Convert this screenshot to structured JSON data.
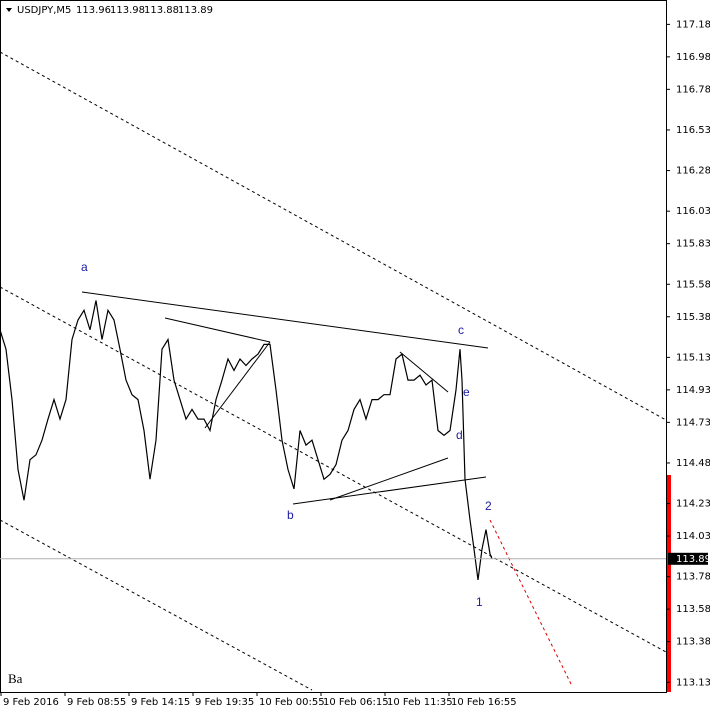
{
  "chart_data": {
    "type": "line",
    "title": "USDJPY,M5",
    "ohlc": [
      113.96,
      113.98,
      113.88,
      113.89
    ],
    "color": "#000000",
    "x": [
      0,
      6,
      12,
      18,
      24,
      30,
      36,
      42,
      48,
      54,
      60,
      66,
      72,
      78,
      84,
      90,
      96,
      102,
      108,
      114,
      120,
      126,
      132,
      138,
      144,
      150,
      156,
      162,
      168,
      174,
      180,
      186,
      192,
      198,
      204,
      210,
      216,
      222,
      228,
      234,
      240,
      246,
      252,
      258,
      264,
      270,
      276,
      282,
      288,
      294,
      300,
      306,
      312,
      318,
      324,
      330,
      336,
      342,
      348,
      354,
      360,
      366,
      372,
      378,
      384,
      390,
      396,
      402,
      408,
      414,
      420,
      426,
      432,
      438,
      444,
      450,
      456,
      460,
      462,
      465,
      470,
      474,
      478,
      482,
      486,
      490,
      492
    ],
    "values": [
      115.3,
      115.18,
      114.87,
      114.44,
      114.25,
      114.5,
      114.53,
      114.62,
      114.75,
      114.87,
      114.75,
      114.87,
      115.24,
      115.36,
      115.42,
      115.3,
      115.48,
      115.24,
      115.42,
      115.36,
      115.18,
      114.99,
      114.9,
      114.87,
      114.68,
      114.38,
      114.62,
      115.18,
      115.24,
      114.99,
      114.87,
      114.75,
      114.81,
      114.75,
      114.75,
      114.68,
      114.87,
      114.99,
      115.12,
      115.05,
      115.12,
      115.08,
      115.12,
      115.15,
      115.21,
      115.21,
      114.93,
      114.62,
      114.44,
      114.32,
      114.68,
      114.59,
      114.62,
      114.5,
      114.38,
      114.41,
      114.47,
      114.62,
      114.68,
      114.81,
      114.87,
      114.75,
      114.87,
      114.87,
      114.9,
      114.9,
      115.12,
      115.15,
      114.99,
      114.99,
      115.02,
      114.96,
      114.99,
      114.68,
      114.65,
      114.68,
      114.93,
      115.18,
      114.99,
      114.38,
      114.13,
      113.95,
      113.76,
      113.95,
      114.07,
      113.92,
      113.89
    ],
    "current_price": 113.89,
    "xlim": [
      0,
      666
    ],
    "xticks": [
      {
        "value": 0,
        "label": "9 Feb 2016"
      },
      {
        "value": 64,
        "label": "9 Feb 08:55"
      },
      {
        "value": 128,
        "label": "9 Feb 14:15"
      },
      {
        "value": 192,
        "label": "9 Feb 19:35"
      },
      {
        "value": 256,
        "label": "10 Feb 00:55"
      },
      {
        "value": 320,
        "label": "10 Feb 06:15"
      },
      {
        "value": 384,
        "label": "10 Feb 11:35"
      },
      {
        "value": 448,
        "label": "10 Feb 16:55"
      }
    ],
    "ylim": [
      113.07,
      117.33
    ],
    "yticks": [
      {
        "value": 117.18,
        "label": "117.18"
      },
      {
        "value": 116.98,
        "label": "116.98"
      },
      {
        "value": 116.78,
        "label": "116.78"
      },
      {
        "value": 116.53,
        "label": "116.53"
      },
      {
        "value": 116.28,
        "label": "116.28"
      },
      {
        "value": 116.03,
        "label": "116.03"
      },
      {
        "value": 115.83,
        "label": "115.83"
      },
      {
        "value": 115.58,
        "label": "115.58"
      },
      {
        "value": 115.38,
        "label": "115.38"
      },
      {
        "value": 115.13,
        "label": "115.13"
      },
      {
        "value": 114.93,
        "label": "114.93"
      },
      {
        "value": 114.73,
        "label": "114.73"
      },
      {
        "value": 114.48,
        "label": "114.48"
      },
      {
        "value": 114.23,
        "label": "114.23"
      },
      {
        "value": 114.03,
        "label": "114.03"
      },
      {
        "value": 113.78,
        "label": "113.78"
      },
      {
        "value": 113.58,
        "label": "113.58"
      },
      {
        "value": 113.38,
        "label": "113.38"
      },
      {
        "value": 113.13,
        "label": "113.13"
      }
    ],
    "annotations": [
      "a",
      "b",
      "c",
      "d",
      "e",
      "1",
      "2",
      "Ba"
    ]
  }
}
